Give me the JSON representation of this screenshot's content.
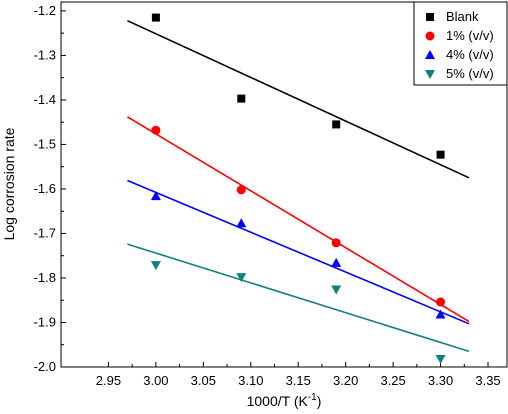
{
  "chart_data": {
    "type": "scatter",
    "xlabel": "1000/T (K",
    "xlabel_sup": "-1",
    "xlabel_suffix": ")",
    "ylabel": "Log corrosion rate",
    "xlim": [
      2.9,
      3.37
    ],
    "ylim": [
      -2.0,
      -1.18
    ],
    "x_ticks": [
      2.95,
      3.0,
      3.05,
      3.1,
      3.15,
      3.2,
      3.25,
      3.3,
      3.35
    ],
    "x_tick_labels": [
      "2.95",
      "3.00",
      "3.05",
      "3.10",
      "3.15",
      "3.20",
      "3.25",
      "3.30",
      "3.35"
    ],
    "y_ticks": [
      -1.2,
      -1.3,
      -1.4,
      -1.5,
      -1.6,
      -1.7,
      -1.8,
      -1.9,
      -2.0
    ],
    "y_tick_labels": [
      "-1.2",
      "-1.3",
      "-1.4",
      "-1.5",
      "-1.6",
      "-1.7",
      "-1.8",
      "-1.9",
      "-2.0"
    ],
    "legend_position": "top-right",
    "grid": false,
    "series": [
      {
        "name": "Blank",
        "color": "#000000",
        "marker": "square",
        "x": [
          3.0,
          3.09,
          3.19,
          3.3
        ],
        "y": [
          -1.215,
          -1.397,
          -1.455,
          -1.523
        ],
        "fit": {
          "x": [
            2.97,
            3.33
          ],
          "y": [
            -1.222,
            -1.575
          ]
        }
      },
      {
        "name": "1% (v/v)",
        "color": "#ff0000",
        "marker": "circle",
        "x": [
          3.0,
          3.09,
          3.19,
          3.3
        ],
        "y": [
          -1.468,
          -1.602,
          -1.721,
          -1.854
        ],
        "fit": {
          "x": [
            2.97,
            3.33
          ],
          "y": [
            -1.438,
            -1.898
          ]
        }
      },
      {
        "name": "4% (v/v)",
        "color": "#0000ff",
        "marker": "triangle-up",
        "x": [
          3.0,
          3.09,
          3.19,
          3.3
        ],
        "y": [
          -1.616,
          -1.677,
          -1.766,
          -1.882
        ],
        "fit": {
          "x": [
            2.97,
            3.33
          ],
          "y": [
            -1.581,
            -1.903
          ]
        }
      },
      {
        "name": "5% (v/v)",
        "color": "#108080",
        "marker": "triangle-down",
        "x": [
          3.0,
          3.09,
          3.19,
          3.3
        ],
        "y": [
          -1.771,
          -1.798,
          -1.826,
          -1.982
        ],
        "fit": {
          "x": [
            2.97,
            3.33
          ],
          "y": [
            -1.724,
            -1.965
          ]
        }
      }
    ]
  }
}
